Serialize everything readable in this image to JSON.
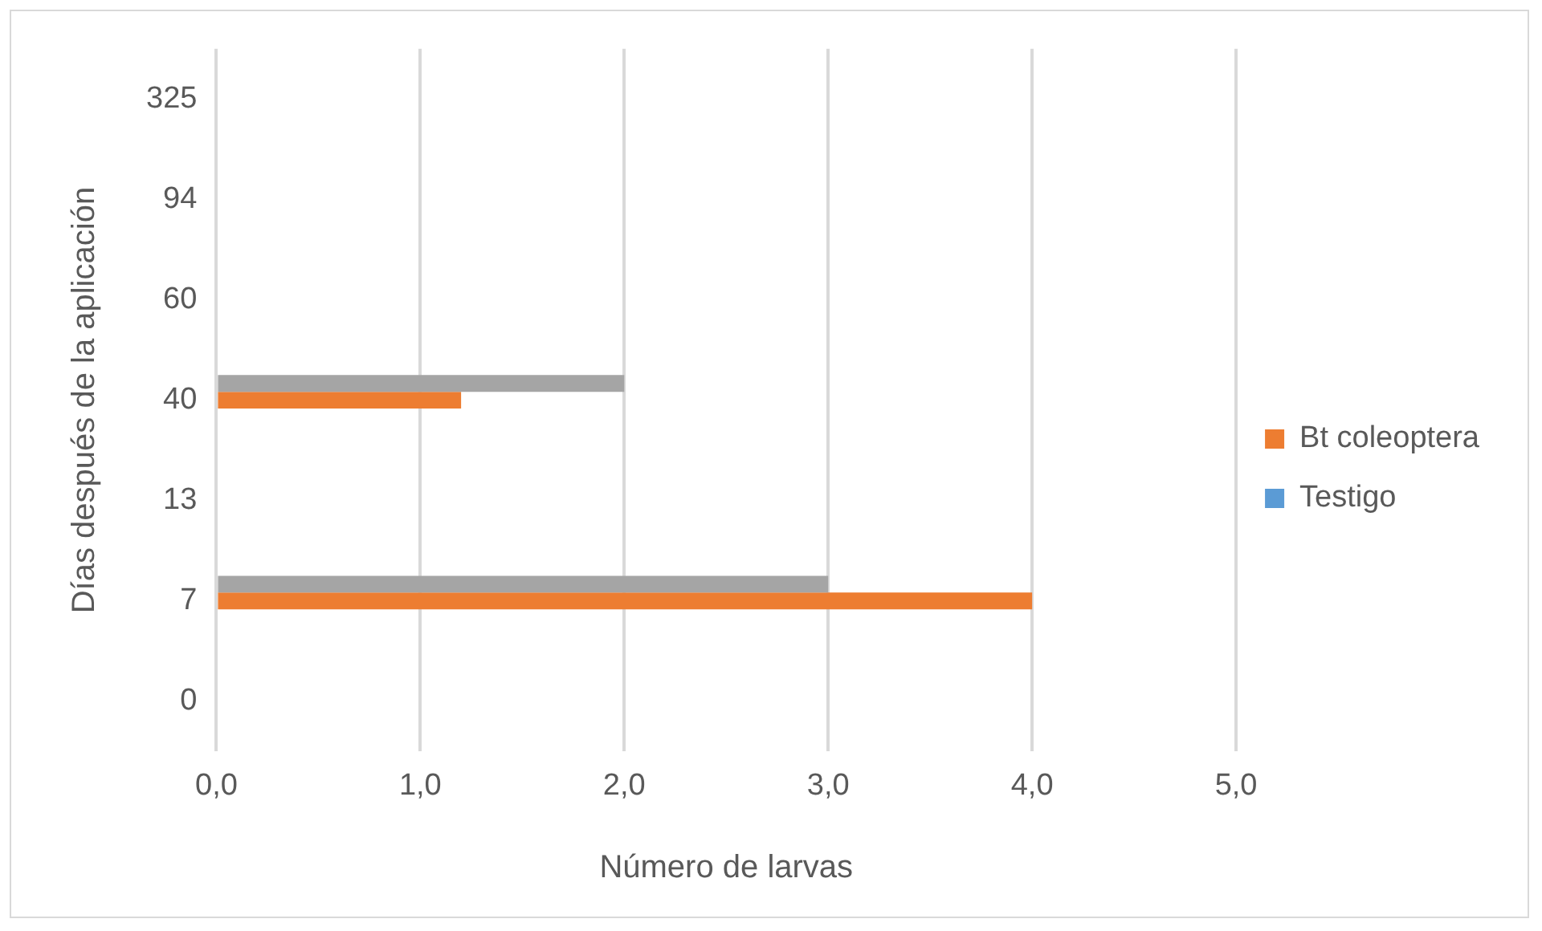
{
  "chart_data": {
    "type": "bar",
    "orientation": "horizontal",
    "xlabel": "Número de larvas",
    "ylabel": "Días después de la aplicación",
    "categories": [
      "325",
      "94",
      "60",
      "40",
      "13",
      "7",
      "0"
    ],
    "series": [
      {
        "color": "#a5a5a5",
        "values": [
          0,
          0,
          0,
          2.0,
          0,
          3.0,
          0
        ]
      },
      {
        "name": "Bt coleoptera",
        "color": "#ed7d31",
        "values": [
          0,
          0,
          0,
          1.2,
          0,
          4.0,
          0
        ]
      },
      {
        "name": "Testigo",
        "color": "#5b9bd5",
        "values": [
          0,
          0,
          0,
          0,
          0,
          0,
          0
        ]
      }
    ],
    "xlim": [
      0,
      5
    ],
    "xticks": [
      {
        "value": 0,
        "label": "0,0"
      },
      {
        "value": 1,
        "label": "1,0"
      },
      {
        "value": 2,
        "label": "2,0"
      },
      {
        "value": 3,
        "label": "3,0"
      },
      {
        "value": 4,
        "label": "4,0"
      },
      {
        "value": 5,
        "label": "5,0"
      }
    ],
    "grid": "x",
    "legend": "right"
  }
}
